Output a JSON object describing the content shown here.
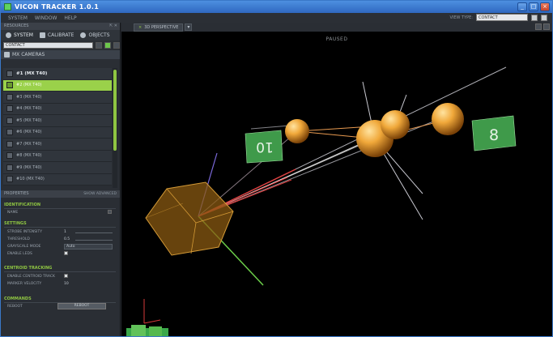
{
  "window": {
    "title": "VICON TRACKER 1.0.1",
    "buttons": [
      "_",
      "□",
      "×"
    ]
  },
  "menu": {
    "items": [
      "SYSTEM",
      "WINDOW",
      "HELP"
    ],
    "view_type_label": "VIEW TYPE:",
    "view_type_value": "CONTACT"
  },
  "resources": {
    "header": "RESOURCES",
    "header_buttons": "⇱ ✕",
    "tabs": [
      {
        "label": "SYSTEM",
        "icon": "system-icon"
      },
      {
        "label": "CALIBRATE",
        "icon": "calibrate-icon"
      },
      {
        "label": "OBJECTS",
        "icon": "objects-icon"
      }
    ],
    "system_select": "CONTACT"
  },
  "cameras": {
    "tree_label": "MX CAMERAS",
    "items": [
      "#1 (MX T40)",
      "#2 (MX T40)",
      "#3 (MX T40)",
      "#4 (MX T40)",
      "#5 (MX T40)",
      "#6 (MX T40)",
      "#7 (MX T40)",
      "#8 (MX T40)",
      "#9 (MX T40)",
      "#10 (MX T40)"
    ],
    "selected_index": 1
  },
  "properties": {
    "header": "PROPERTIES",
    "show_advanced": "SHOW ADVANCED",
    "identification": {
      "title": "IDENTIFICATION",
      "name_label": "NAME"
    },
    "settings": {
      "title": "SETTINGS",
      "strobe_label": "STROBE INTENSITY",
      "strobe_value": "1",
      "threshold_label": "THRESHOLD",
      "threshold_value": "0.5",
      "grayscale_label": "GRAYSCALE MODE",
      "grayscale_value": "Auto",
      "leds_label": "ENABLE LEDS"
    },
    "centroid": {
      "title": "CENTROID TRACKING",
      "enable_label": "ENABLE CENTROID TRACK",
      "velocity_label": "MARKER VELOCITY",
      "velocity_value": "10"
    },
    "commands": {
      "title": "COMMANDS",
      "reboot_label": "REBOOT",
      "reboot_button": "REBOOT"
    }
  },
  "viewport": {
    "tab_label": "3D PERSPECTIVE",
    "status": "PAUSED",
    "camera_labels": [
      "10",
      "8"
    ],
    "colors": {
      "marker": "#e8a33a",
      "object_box": "#8a5a12",
      "camera_label_bg": "#3f9a4a",
      "accent_green": "#8fc642"
    }
  }
}
